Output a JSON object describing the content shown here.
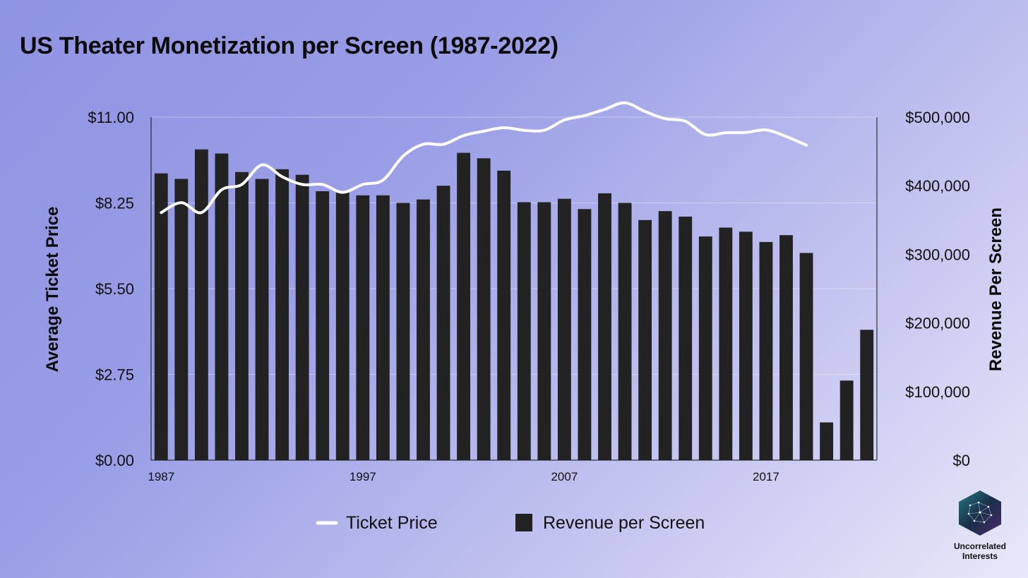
{
  "title": "US Theater Monetization per Screen (1987-2022)",
  "branding": {
    "name_line1": "Uncorrelated",
    "name_line2": "Interests"
  },
  "colors": {
    "bars": "#222222",
    "line": "#ffffff",
    "text": "#111111"
  },
  "chart_data": {
    "type": "bar+line",
    "title": "US Theater Monetization per Screen (1987-2022)",
    "x": [
      1987,
      1988,
      1989,
      1990,
      1991,
      1992,
      1993,
      1994,
      1995,
      1996,
      1997,
      1998,
      1999,
      2000,
      2001,
      2002,
      2003,
      2004,
      2005,
      2006,
      2007,
      2008,
      2009,
      2010,
      2011,
      2012,
      2013,
      2014,
      2015,
      2016,
      2017,
      2018,
      2019,
      2020,
      2021,
      2022
    ],
    "x_tick_labels": [
      "1987",
      "1997",
      "2007",
      "2017"
    ],
    "x_tick_values": [
      1987,
      1997,
      2007,
      2017
    ],
    "left_axis": {
      "label": "Average Ticket Price",
      "ylim": [
        0,
        11
      ],
      "ticks": [
        "$0.00",
        "$2.75",
        "$5.50",
        "$8.25",
        "$11.00"
      ],
      "tick_values": [
        0,
        2.75,
        5.5,
        8.25,
        11
      ]
    },
    "right_axis": {
      "label": "Revenue Per Screen",
      "ylim": [
        0,
        500000
      ],
      "ticks": [
        "$0",
        "$100,000",
        "$200,000",
        "$300,000",
        "$400,000",
        "$500,000"
      ],
      "tick_values": [
        0,
        100000,
        200000,
        300000,
        400000,
        500000
      ]
    },
    "grid": true,
    "legend_position": "bottom-center",
    "series": [
      {
        "name": "Ticket Price",
        "type": "line",
        "axis": "left",
        "values": [
          7.94,
          8.26,
          7.94,
          8.67,
          8.84,
          9.47,
          9.09,
          8.84,
          8.84,
          8.59,
          8.84,
          8.98,
          9.75,
          10.13,
          10.13,
          10.41,
          10.55,
          10.66,
          10.58,
          10.58,
          10.91,
          11.05,
          11.25,
          11.46,
          11.18,
          10.95,
          10.87,
          10.44,
          10.5,
          10.51,
          10.59,
          10.38,
          10.1,
          null,
          null,
          null
        ]
      },
      {
        "name": "Revenue per Screen",
        "type": "bar",
        "axis": "right",
        "values": [
          418000,
          410000,
          453000,
          447000,
          420000,
          410000,
          424000,
          416000,
          392000,
          390000,
          386000,
          386000,
          375000,
          380000,
          400000,
          448000,
          440000,
          422000,
          376000,
          376000,
          381000,
          366000,
          389000,
          375000,
          350000,
          363000,
          355000,
          326000,
          339000,
          333000,
          318000,
          328000,
          302000,
          55000,
          116000,
          190000
        ]
      }
    ]
  }
}
